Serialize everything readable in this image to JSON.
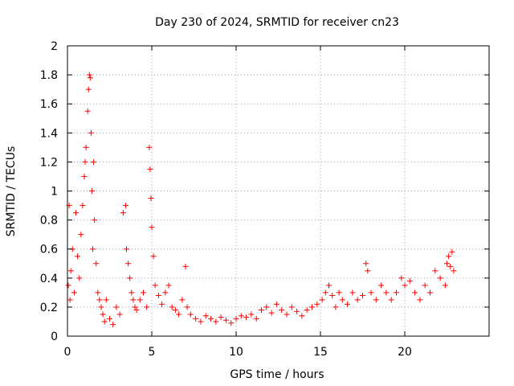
{
  "chart_data": {
    "type": "scatter",
    "title": "Day 230 of 2024, SRMTID for receiver cn23",
    "xlabel": "GPS time / hours",
    "ylabel": "SRMTID / TECUs",
    "xlim": [
      0,
      25
    ],
    "ylim": [
      0,
      2
    ],
    "xticks": [
      0,
      5,
      10,
      15,
      20
    ],
    "xtick_labels": [
      "0",
      "5",
      "10",
      "15",
      "20"
    ],
    "yticks": [
      0,
      0.2,
      0.4,
      0.6,
      0.8,
      1,
      1.2,
      1.4,
      1.6,
      1.8,
      2
    ],
    "ytick_labels": [
      "0",
      "0.2",
      "0.4",
      "0.6",
      "0.8",
      "1",
      "1.2",
      "1.4",
      "1.6",
      "1.8",
      "2"
    ],
    "grid": true,
    "marker": "+",
    "series": [
      {
        "name": "SRMTID",
        "color": "#ff0000",
        "x": [
          0.05,
          0.1,
          0.15,
          0.2,
          0.3,
          0.4,
          0.5,
          0.6,
          0.7,
          0.8,
          0.9,
          1.0,
          1.05,
          1.1,
          1.2,
          1.25,
          1.3,
          1.35,
          1.4,
          1.45,
          1.5,
          1.55,
          1.6,
          1.7,
          1.8,
          1.9,
          2.0,
          2.1,
          2.2,
          2.3,
          2.5,
          2.7,
          2.9,
          3.1,
          3.3,
          3.45,
          3.5,
          3.6,
          3.7,
          3.8,
          3.9,
          4.0,
          4.1,
          4.3,
          4.5,
          4.7,
          4.85,
          4.9,
          4.95,
          5.0,
          5.1,
          5.2,
          5.4,
          5.6,
          5.8,
          6.0,
          6.2,
          6.4,
          6.6,
          6.8,
          7.0,
          7.1,
          7.3,
          7.6,
          7.9,
          8.2,
          8.5,
          8.8,
          9.1,
          9.4,
          9.7,
          10.0,
          10.3,
          10.6,
          10.9,
          11.2,
          11.5,
          11.8,
          12.1,
          12.4,
          12.7,
          13.0,
          13.3,
          13.6,
          13.9,
          14.2,
          14.5,
          14.8,
          15.1,
          15.3,
          15.5,
          15.7,
          15.9,
          16.1,
          16.3,
          16.6,
          16.9,
          17.2,
          17.5,
          17.7,
          17.8,
          18.0,
          18.3,
          18.6,
          18.9,
          19.2,
          19.5,
          19.8,
          20.0,
          20.3,
          20.6,
          20.9,
          21.2,
          21.5,
          21.8,
          22.1,
          22.4,
          22.5,
          22.6,
          22.7,
          22.8,
          22.9
        ],
        "y": [
          0.35,
          0.9,
          0.25,
          0.45,
          0.6,
          0.3,
          0.85,
          0.55,
          0.4,
          0.7,
          0.9,
          1.1,
          1.2,
          1.3,
          1.55,
          1.7,
          1.8,
          1.78,
          1.4,
          1.0,
          0.6,
          1.2,
          0.8,
          0.5,
          0.3,
          0.25,
          0.2,
          0.15,
          0.1,
          0.25,
          0.12,
          0.08,
          0.2,
          0.15,
          0.85,
          0.9,
          0.6,
          0.5,
          0.4,
          0.3,
          0.25,
          0.2,
          0.18,
          0.25,
          0.3,
          0.2,
          1.3,
          1.15,
          0.95,
          0.75,
          0.55,
          0.35,
          0.28,
          0.22,
          0.3,
          0.35,
          0.2,
          0.18,
          0.15,
          0.25,
          0.48,
          0.2,
          0.15,
          0.12,
          0.1,
          0.14,
          0.12,
          0.1,
          0.13,
          0.11,
          0.09,
          0.12,
          0.14,
          0.13,
          0.15,
          0.12,
          0.18,
          0.2,
          0.16,
          0.22,
          0.18,
          0.15,
          0.2,
          0.17,
          0.14,
          0.18,
          0.2,
          0.22,
          0.25,
          0.3,
          0.35,
          0.28,
          0.2,
          0.3,
          0.25,
          0.22,
          0.3,
          0.25,
          0.28,
          0.5,
          0.45,
          0.3,
          0.25,
          0.35,
          0.3,
          0.25,
          0.3,
          0.4,
          0.35,
          0.38,
          0.3,
          0.25,
          0.35,
          0.3,
          0.45,
          0.4,
          0.35,
          0.5,
          0.55,
          0.48,
          0.58,
          0.45
        ]
      }
    ]
  }
}
